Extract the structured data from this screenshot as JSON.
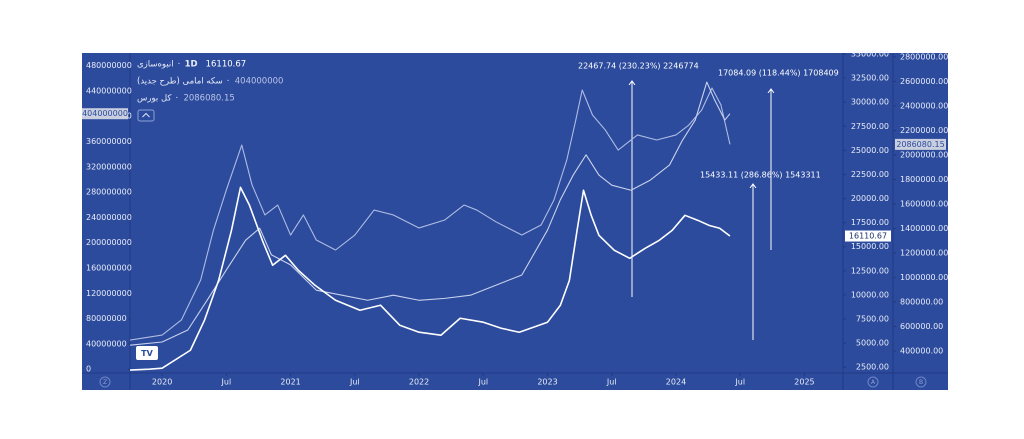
{
  "chart_data": {
    "type": "line",
    "interval": "1D",
    "xlim": [
      2019.75,
      2025.3
    ],
    "xticks": [
      {
        "value": 2020,
        "label": "2020"
      },
      {
        "value": 2020.5,
        "label": "Jul"
      },
      {
        "value": 2021,
        "label": "2021"
      },
      {
        "value": 2021.5,
        "label": "Jul"
      },
      {
        "value": 2022,
        "label": "2022"
      },
      {
        "value": 2022.5,
        "label": "Jul"
      },
      {
        "value": 2023,
        "label": "2023"
      },
      {
        "value": 2023.5,
        "label": "Jul"
      },
      {
        "value": 2024,
        "label": "2024"
      },
      {
        "value": 2024.5,
        "label": "Jul"
      },
      {
        "value": 2025,
        "label": "2025"
      }
    ],
    "ylim": [
      -6000000,
      500000000
    ],
    "yticks": [
      0,
      40000000,
      80000000,
      120000000,
      160000000,
      200000000,
      240000000,
      280000000,
      320000000,
      360000000,
      400000000,
      440000000,
      480000000
    ],
    "y2lim": [
      1900,
      35100
    ],
    "y2ticks": [
      {
        "value": 2500,
        "label": "2500.00"
      },
      {
        "value": 5000,
        "label": "5000.00"
      },
      {
        "value": 7500,
        "label": "7500.00"
      },
      {
        "value": 10000,
        "label": "10000.00"
      },
      {
        "value": 12500,
        "label": "12500.00"
      },
      {
        "value": 15000,
        "label": "15000.00"
      },
      {
        "value": 17500,
        "label": "17500.00"
      },
      {
        "value": 20000,
        "label": "20000.00"
      },
      {
        "value": 22500,
        "label": "22500.00"
      },
      {
        "value": 25000,
        "label": "25000.00"
      },
      {
        "value": 27500,
        "label": "27500.00"
      },
      {
        "value": 30000,
        "label": "30000.00"
      },
      {
        "value": 32500,
        "label": "32500.00"
      },
      {
        "value": 35000,
        "label": "35000.00"
      }
    ],
    "y3lim": [
      220000,
      2832000
    ],
    "y3ticks": [
      {
        "value": 400000,
        "label": "400000.00"
      },
      {
        "value": 600000,
        "label": "600000.00"
      },
      {
        "value": 800000,
        "label": "800000.00"
      },
      {
        "value": 1000000,
        "label": "1000000.00"
      },
      {
        "value": 1200000,
        "label": "1200000.00"
      },
      {
        "value": 1400000,
        "label": "1400000.00"
      },
      {
        "value": 1600000,
        "label": "1600000.00"
      },
      {
        "value": 1800000,
        "label": "1800000.00"
      },
      {
        "value": 2000000,
        "label": "2000000.00"
      },
      {
        "value": 2200000,
        "label": "2200000.00"
      },
      {
        "value": 2400000,
        "label": "2400000.00"
      },
      {
        "value": 2600000,
        "label": "2600000.00"
      },
      {
        "value": 2800000,
        "label": "2800000.00"
      }
    ],
    "grid": false,
    "axis_badges": [
      "Z",
      "A",
      "B"
    ],
    "series": [
      {
        "name": "انبوه‌سازی",
        "color": "#ffffff",
        "axis": "y2",
        "x": [
          2019.75,
          2019.9,
          2020.0,
          2020.22,
          2020.33,
          2020.44,
          2020.54,
          2020.61,
          2020.68,
          2020.78,
          2020.86,
          2020.96,
          2021.06,
          2021.19,
          2021.35,
          2021.54,
          2021.7,
          2021.85,
          2022.0,
          2022.17,
          2022.32,
          2022.5,
          2022.64,
          2022.78,
          2023.0,
          2023.1,
          2023.17,
          2023.23,
          2023.28,
          2023.34,
          2023.4,
          2023.52,
          2023.64,
          2023.76,
          2023.87,
          2023.97,
          2024.07,
          2024.17,
          2024.26,
          2024.34,
          2024.42
        ],
        "values": [
          2200,
          2300,
          2400,
          4260,
          7380,
          11520,
          16700,
          21160,
          19300,
          15670,
          13080,
          14110,
          12560,
          11000,
          9450,
          8410,
          8930,
          6860,
          6130,
          5820,
          7580,
          7170,
          6540,
          6130,
          7170,
          8930,
          11500,
          16700,
          20860,
          18260,
          16190,
          14630,
          13800,
          14840,
          15670,
          16700,
          18260,
          17740,
          17200,
          16920,
          16110.67
        ]
      },
      {
        "name": "سکه امامی (طرح جدید)",
        "color": "#c9d2ec",
        "axis": "y",
        "x": [
          2019.75,
          2020.0,
          2020.2,
          2020.35,
          2020.5,
          2020.65,
          2020.76,
          2020.85,
          2021.0,
          2021.2,
          2021.4,
          2021.6,
          2021.8,
          2022.0,
          2022.2,
          2022.4,
          2022.6,
          2022.8,
          2023.0,
          2023.1,
          2023.2,
          2023.3,
          2023.4,
          2023.5,
          2023.65,
          2023.8,
          2023.95,
          2024.05,
          2024.15,
          2024.24,
          2024.3,
          2024.38,
          2024.42
        ],
        "values": [
          38000000,
          43000000,
          62000000,
          109000000,
          157000000,
          204000000,
          223000000,
          181000000,
          165000000,
          125000000,
          117000000,
          109000000,
          117000000,
          109000000,
          112000000,
          117000000,
          133000000,
          149000000,
          220000000,
          268000000,
          307000000,
          339000000,
          307000000,
          291000000,
          283000000,
          299000000,
          323000000,
          362000000,
          394000000,
          454000000,
          426000000,
          394000000,
          404000000
        ]
      },
      {
        "name": "کل بورس",
        "color": "#aebbe3",
        "axis": "y3",
        "x": [
          2019.75,
          2020.0,
          2020.15,
          2020.3,
          2020.4,
          2020.5,
          2020.58,
          2020.62,
          2020.7,
          2020.8,
          2020.9,
          2021.0,
          2021.1,
          2021.2,
          2021.35,
          2021.5,
          2021.65,
          2021.8,
          2022.0,
          2022.2,
          2022.35,
          2022.45,
          2022.6,
          2022.8,
          2022.95,
          2023.05,
          2023.15,
          2023.22,
          2023.27,
          2023.35,
          2023.45,
          2023.55,
          2023.7,
          2023.85,
          2024.0,
          2024.1,
          2024.2,
          2024.28,
          2024.35,
          2024.42
        ],
        "values": [
          489000,
          530000,
          653000,
          979000,
          1387000,
          1714000,
          1959000,
          2081000,
          1755000,
          1510000,
          1591000,
          1346000,
          1510000,
          1306000,
          1224000,
          1346000,
          1550000,
          1510000,
          1404000,
          1469000,
          1591000,
          1550000,
          1453000,
          1346000,
          1428000,
          1632000,
          1959000,
          2285000,
          2530000,
          2326000,
          2203000,
          2040000,
          2163000,
          2122000,
          2163000,
          2244000,
          2367000,
          2546000,
          2408000,
          2086080.15
        ]
      }
    ],
    "annotations": [
      "22467.74 (230.23%) 2246774",
      "17084.09 (118.44%) 1708409",
      "15433.11 (286.86%) 1543311"
    ]
  }
}
